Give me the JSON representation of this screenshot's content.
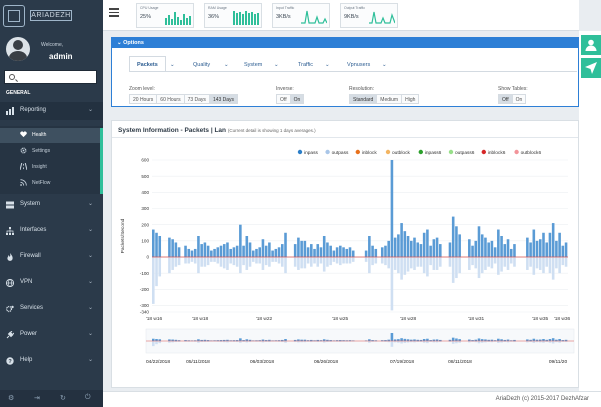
{
  "app": {
    "welcome": "Welcome,",
    "username": "admin",
    "search_placeholder": "",
    "section": "GENERAL",
    "logo_text": "ARIADEZH"
  },
  "sidebar": {
    "items": [
      {
        "label": "Reporting",
        "icon": "chart-icon"
      },
      {
        "label": "System",
        "icon": "server-icon"
      },
      {
        "label": "Interfaces",
        "icon": "sitemap-icon"
      },
      {
        "label": "Firewall",
        "icon": "fire-icon"
      },
      {
        "label": "VPN",
        "icon": "globe-icon"
      },
      {
        "label": "Services",
        "icon": "gears-icon"
      },
      {
        "label": "Power",
        "icon": "plug-icon"
      },
      {
        "label": "Help",
        "icon": "help-icon"
      }
    ],
    "reporting_sub": [
      {
        "label": "Health",
        "icon": "heart-icon"
      },
      {
        "label": "Settings",
        "icon": "gear-icon"
      },
      {
        "label": "Insight",
        "icon": "road-icon"
      },
      {
        "label": "NetFlow",
        "icon": "rss-icon"
      }
    ]
  },
  "topbar": {
    "cards": [
      {
        "title": "CPU Usage",
        "value": "25%"
      },
      {
        "title": "RAM Usage",
        "value": "36%"
      },
      {
        "title": "Input Traffic",
        "value": "3KB/s"
      },
      {
        "title": "Output Traffic",
        "value": "9KB/s"
      }
    ]
  },
  "options": {
    "header": "Options",
    "tabs": [
      "Packets",
      "Quality",
      "System",
      "Traffic",
      "Vpnusers"
    ],
    "zoom": {
      "label": "Zoom level:",
      "choices": [
        "20 Hours",
        "60 Hours",
        "73 Days",
        "143 Days"
      ],
      "selected": "143 Days"
    },
    "inverse": {
      "label": "Inverse:",
      "choices": [
        "Off",
        "On"
      ],
      "selected": "On"
    },
    "resolution": {
      "label": "Resolution:",
      "choices": [
        "Standard",
        "Medium",
        "High"
      ],
      "selected": "Standard"
    },
    "tables": {
      "label": "Show Tables:",
      "choices": [
        "Off",
        "On"
      ],
      "selected": "Off"
    }
  },
  "sysinfo": {
    "title": "System Information - Packets | Lan",
    "subtitle": "(Current detail is showing 1 days averages.)"
  },
  "footer": {
    "text": "AriaDezh (c) 2015-2017 DezhAfzar"
  },
  "colors": {
    "sidebar": "#2b3a4a",
    "accent_green": "#2fbf9a",
    "accent_blue": "#2d7fd6",
    "inpass": "#5a9bd5",
    "outpass": "#a9c6e8"
  },
  "chart_data": {
    "type": "bar",
    "title": "",
    "ylabel": "Packets/Second",
    "ylim": [
      -340,
      600
    ],
    "yticks": [
      600,
      500,
      400,
      300,
      200,
      100,
      0,
      -100,
      -200,
      -300,
      -340
    ],
    "xticks": [
      "'18 w16",
      "'18 w18",
      "'18 w22",
      "'18 w25",
      "'18 w28",
      "'18 w31",
      "'18 w35",
      "'18 w36"
    ],
    "legend": [
      "inpass",
      "outpass",
      "inblock",
      "outblock",
      "inpass6",
      "outpass6",
      "inblock6",
      "outblock6"
    ],
    "legend_colors": [
      "#2c7fc8",
      "#a9c6e8",
      "#e8711c",
      "#f3b562",
      "#2ca02c",
      "#98df8a",
      "#d62728",
      "#f2949a"
    ],
    "legend_position": "top-right",
    "overview_dates": [
      "04/22/2018",
      "05/11/2018",
      "06/03/2018",
      "06/26/2018",
      "07/19/2018",
      "08/11/2018",
      "09/11/20"
    ],
    "series": [
      {
        "name": "inpass",
        "values": [
          170,
          150,
          130,
          0,
          0,
          120,
          110,
          90,
          60,
          0,
          70,
          50,
          40,
          50,
          130,
          80,
          90,
          70,
          40,
          50,
          60,
          70,
          80,
          90,
          50,
          60,
          70,
          200,
          70,
          130,
          90,
          40,
          50,
          60,
          110,
          70,
          90,
          40,
          50,
          60,
          80,
          150,
          0,
          0,
          80,
          120,
          100,
          100,
          60,
          80,
          50,
          80,
          60,
          130,
          90,
          70,
          40,
          60,
          70,
          60,
          50,
          60,
          40,
          0,
          0,
          0,
          40,
          130,
          70,
          50,
          0,
          60,
          70,
          100,
          600,
          120,
          140,
          210,
          160,
          130,
          100,
          120,
          90,
          80,
          150,
          170,
          70,
          110,
          120,
          80,
          0,
          0,
          90,
          250,
          190,
          140,
          0,
          0,
          110,
          70,
          100,
          190,
          140,
          120,
          90,
          100,
          60,
          170,
          130,
          80,
          110,
          50,
          80,
          0,
          0,
          0,
          120,
          90,
          170,
          100,
          110,
          150,
          90,
          150,
          210,
          100,
          150,
          70,
          90
        ]
      },
      {
        "name": "outpass",
        "values": [
          -290,
          -180,
          -120,
          0,
          0,
          -100,
          -80,
          -60,
          -50,
          0,
          -40,
          -40,
          -30,
          -40,
          -100,
          -60,
          -60,
          -50,
          -30,
          -30,
          -40,
          -60,
          -70,
          -80,
          -40,
          -50,
          -60,
          -100,
          -50,
          -80,
          -60,
          -30,
          -40,
          -40,
          -80,
          -50,
          -60,
          -30,
          -30,
          -40,
          -60,
          -100,
          0,
          0,
          -60,
          -80,
          -70,
          -70,
          -40,
          -60,
          -40,
          -60,
          -40,
          -90,
          -60,
          -50,
          -30,
          -40,
          -50,
          -40,
          -40,
          -40,
          -30,
          0,
          0,
          0,
          -30,
          -100,
          -50,
          -40,
          0,
          -40,
          -50,
          -70,
          -330,
          -80,
          -100,
          -140,
          -110,
          -90,
          -70,
          -80,
          -60,
          -60,
          -100,
          -120,
          -50,
          -80,
          -80,
          -60,
          0,
          0,
          -60,
          -160,
          -130,
          -100,
          0,
          0,
          -80,
          -50,
          -70,
          -130,
          -100,
          -80,
          -60,
          -70,
          -40,
          -110,
          -90,
          -60,
          -80,
          -40,
          -60,
          0,
          0,
          0,
          -80,
          -60,
          -110,
          -70,
          -80,
          -100,
          -60,
          -100,
          -140,
          -70,
          -100,
          -50,
          -60
        ]
      }
    ]
  }
}
